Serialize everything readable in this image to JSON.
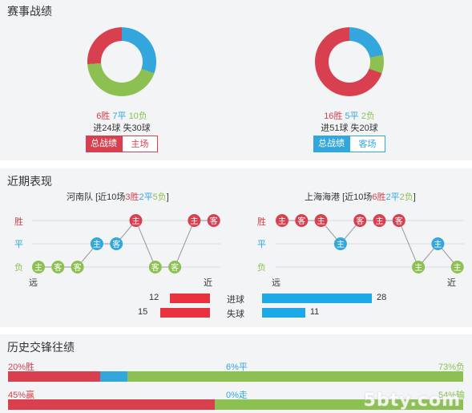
{
  "section1": {
    "title": "赛事战绩",
    "home": {
      "win": "6胜",
      "draw": "7平",
      "loss": "10负",
      "goals": "进24球 失30球",
      "tab_active": "总战绩",
      "tab_other": "主场",
      "chart": {
        "win": 6,
        "draw": 7,
        "loss": 10
      }
    },
    "away": {
      "win": "16胜",
      "draw": "5平",
      "loss": "2负",
      "goals": "进51球 失20球",
      "tab_active": "总战绩",
      "tab_other": "客场",
      "chart": {
        "win": 16,
        "draw": 5,
        "loss": 2
      }
    }
  },
  "section2": {
    "title": "近期表现",
    "home": {
      "team": "河南队",
      "summary_pre": "[近10场",
      "wins": "3胜",
      "draws": "2平",
      "losses": "5负",
      "summary_post": "]",
      "results": [
        "L",
        "L",
        "L",
        "D",
        "D",
        "W",
        "L",
        "L",
        "W",
        "W"
      ],
      "venues": [
        "主",
        "客",
        "客",
        "主",
        "客",
        "主",
        "客",
        "客",
        "主",
        "客"
      ]
    },
    "away": {
      "team": "上海海港",
      "summary_pre": "[近10场",
      "wins": "6胜",
      "draws": "2平",
      "losses": "2负",
      "summary_post": "]",
      "results": [
        "W",
        "W",
        "W",
        "D",
        "W",
        "W",
        "W",
        "L",
        "D",
        "L"
      ],
      "venues": [
        "主",
        "客",
        "主",
        "主",
        "客",
        "主",
        "客",
        "主",
        "主",
        "主"
      ]
    },
    "y_labels": {
      "win": "胜",
      "draw": "平",
      "loss": "负"
    },
    "x_far": "远",
    "x_near": "近",
    "goals_for_label": "进球",
    "goals_against_label": "失球",
    "home_goals_for": "12",
    "home_goals_against": "15",
    "away_goals_for": "28",
    "away_goals_against": "11",
    "home_goals_for_value": 12,
    "home_goals_against_value": 15,
    "away_goals_for_value": 28,
    "away_goals_against_value": 11
  },
  "section3": {
    "title": "历史交锋往绩",
    "row1": {
      "left": "20%胜",
      "mid": "6%平",
      "right": "73%负",
      "win": 20,
      "draw": 6,
      "loss": 73
    },
    "row2": {
      "left": "45%赢",
      "mid": "0%走",
      "right": "54%输",
      "win": 45,
      "draw": 0,
      "loss": 54
    }
  },
  "watermark": "5bty.com",
  "colors": {
    "win": "#d9404f",
    "draw": "#33a6dd",
    "loss": "#8cc152",
    "bar_blue": "#1ba9e8"
  }
}
